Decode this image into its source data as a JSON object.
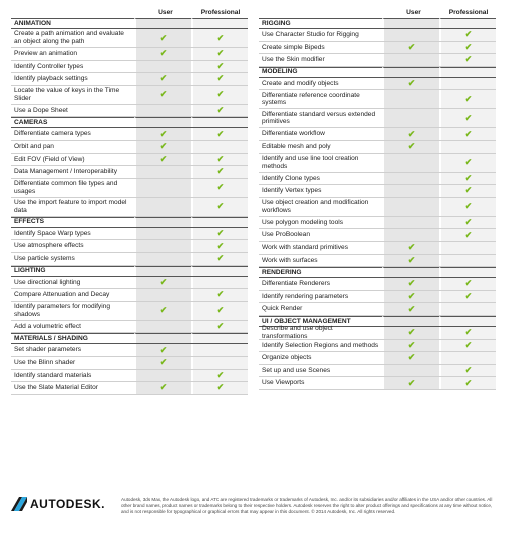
{
  "columns": {
    "feature": "",
    "user": "User",
    "professional": "Professional"
  },
  "check_color": "#7ab81e",
  "left": [
    {
      "type": "section",
      "label": "ANIMATION"
    },
    {
      "label": "Create a path animation and evaluate an object along the path",
      "lines": 2,
      "user": true,
      "pro": true
    },
    {
      "label": "Preview an animation",
      "lines": 1,
      "user": true,
      "pro": true
    },
    {
      "label": "Identify Controller types",
      "lines": 1,
      "user": false,
      "pro": true
    },
    {
      "label": "Identify playback settings",
      "lines": 1,
      "user": true,
      "pro": true
    },
    {
      "label": "Locate the value of keys in the Time Slider",
      "lines": 2,
      "user": true,
      "pro": true
    },
    {
      "label": "Use a Dope Sheet",
      "lines": 1,
      "user": false,
      "pro": true
    },
    {
      "type": "section",
      "label": "CAMERAS"
    },
    {
      "label": "Differentiate camera types",
      "lines": 1,
      "user": true,
      "pro": true
    },
    {
      "label": "Orbit and pan",
      "lines": 1,
      "user": true,
      "pro": false
    },
    {
      "label": "Edit FOV (Field of View)",
      "lines": 1,
      "user": true,
      "pro": true
    },
    {
      "label": "Data Management / Interoperability",
      "lines": 1,
      "user": false,
      "pro": true
    },
    {
      "label": "Differentiate common file types and usages",
      "lines": 2,
      "user": false,
      "pro": true
    },
    {
      "label": "Use the import feature to import model data",
      "lines": 2,
      "user": false,
      "pro": true
    },
    {
      "type": "section",
      "label": "EFFECTS"
    },
    {
      "label": "Identify Space Warp types",
      "lines": 1,
      "user": false,
      "pro": true
    },
    {
      "label": "Use atmosphere effects",
      "lines": 1,
      "user": false,
      "pro": true
    },
    {
      "label": "Use particle systems",
      "lines": 1,
      "user": false,
      "pro": true
    },
    {
      "type": "section",
      "label": "LIGHTING"
    },
    {
      "label": "Use directional lighting",
      "lines": 1,
      "user": true,
      "pro": false
    },
    {
      "label": "Compare Attenuation and Decay",
      "lines": 1,
      "user": false,
      "pro": true
    },
    {
      "label": "Identify parameters for modifying shadows",
      "lines": 2,
      "user": true,
      "pro": true
    },
    {
      "label": "Add a volumetric effect",
      "lines": 1,
      "user": false,
      "pro": true
    },
    {
      "type": "section",
      "label": "MATERIALS / SHADING"
    },
    {
      "label": "Set shader parameters",
      "lines": 1,
      "user": true,
      "pro": false
    },
    {
      "label": "Use the Blinn shader",
      "lines": 1,
      "user": true,
      "pro": false
    },
    {
      "label": "Identify standard materials",
      "lines": 1,
      "user": false,
      "pro": true
    },
    {
      "label": "Use the Slate Material Editor",
      "lines": 1,
      "user": true,
      "pro": true
    }
  ],
  "right": [
    {
      "type": "section",
      "label": "RIGGING"
    },
    {
      "label": "Use Character Studio for Rigging",
      "lines": 1,
      "user": false,
      "pro": true
    },
    {
      "label": "Create simple Bipeds",
      "lines": 1,
      "user": true,
      "pro": true
    },
    {
      "label": "Use the Skin modifier",
      "lines": 1,
      "user": false,
      "pro": true
    },
    {
      "type": "section",
      "label": "MODELING"
    },
    {
      "label": "Create and modify objects",
      "lines": 1,
      "user": true,
      "pro": false
    },
    {
      "label": "Differentiate reference coordinate systems",
      "lines": 2,
      "user": false,
      "pro": true
    },
    {
      "label": "Differentiate standard versus extended primitives",
      "lines": 2,
      "user": false,
      "pro": true
    },
    {
      "label": "Differentiate workflow",
      "lines": 1,
      "user": true,
      "pro": true
    },
    {
      "label": "Editable mesh and poly",
      "lines": 1,
      "user": true,
      "pro": false
    },
    {
      "label": "Identify and use line tool creation methods",
      "lines": 2,
      "user": false,
      "pro": true
    },
    {
      "label": "Identify Clone types",
      "lines": 1,
      "user": false,
      "pro": true
    },
    {
      "label": "Identify Vertex types",
      "lines": 1,
      "user": false,
      "pro": true
    },
    {
      "label": "Use object creation and modification workflows",
      "lines": 2,
      "user": false,
      "pro": true
    },
    {
      "label": "Use polygon modeling tools",
      "lines": 1,
      "user": false,
      "pro": true
    },
    {
      "label": "Use ProBoolean",
      "lines": 1,
      "user": false,
      "pro": true
    },
    {
      "label": "Work with standard primitives",
      "lines": 1,
      "user": true,
      "pro": false
    },
    {
      "label": "Work with surfaces",
      "lines": 1,
      "user": true,
      "pro": false
    },
    {
      "type": "section",
      "label": "RENDERING"
    },
    {
      "label": "Differentiate Renderers",
      "lines": 1,
      "user": true,
      "pro": true
    },
    {
      "label": "Identify rendering parameters",
      "lines": 1,
      "user": true,
      "pro": true
    },
    {
      "label": "Quick Render",
      "lines": 1,
      "user": true,
      "pro": false
    },
    {
      "type": "section",
      "label": "UI / OBJECT MANAGEMENT"
    },
    {
      "label": "Describe and use object transformations",
      "lines": 1,
      "user": true,
      "pro": true
    },
    {
      "label": "Identify Selection Regions and methods",
      "lines": 1,
      "user": true,
      "pro": true
    },
    {
      "label": "Organize objects",
      "lines": 1,
      "user": true,
      "pro": false
    },
    {
      "label": "Set up and use Scenes",
      "lines": 1,
      "user": false,
      "pro": true
    },
    {
      "label": "Use Viewports",
      "lines": 1,
      "user": true,
      "pro": true
    }
  ],
  "footer": {
    "logo_text": "AUTODESK.",
    "legal": "Autodesk, 3ds Max, the Autodesk logo, and ATC are registered trademarks or trademarks of Autodesk, Inc. and/or its subsidiaries and/or affiliates in the USA and/or other countries. All other brand names, product names or trademarks belong to their respective holders. Autodesk reserves the right to alter product offerings and specifications at any time without notice, and is not responsible for typographical or graphical errors that may appear in this document. © 2014 Autodesk, Inc. All rights reserved."
  }
}
